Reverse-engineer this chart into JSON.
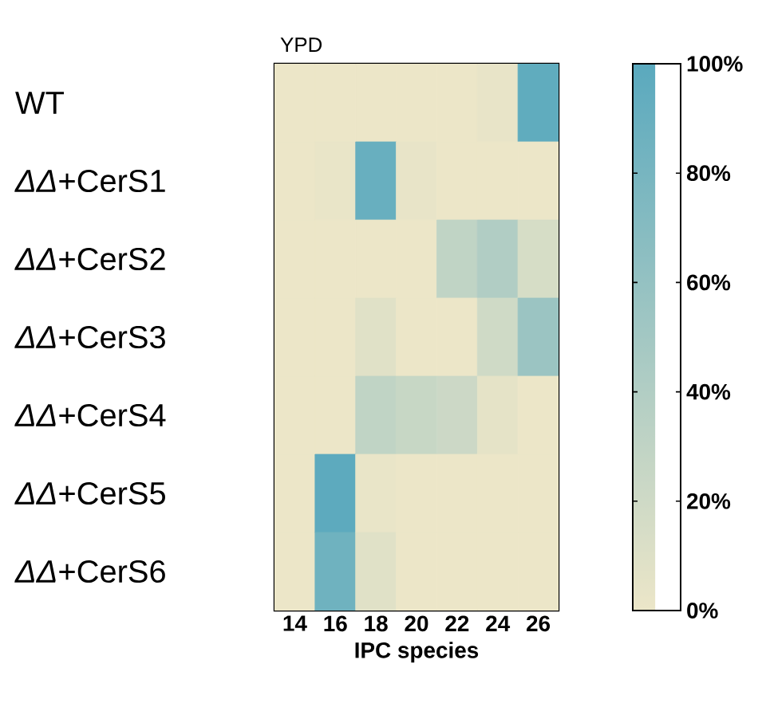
{
  "chart_data": {
    "type": "heatmap",
    "title": "YPD",
    "xlabel": "IPC species",
    "categories": [
      "14",
      "16",
      "18",
      "20",
      "22",
      "24",
      "26"
    ],
    "y_categories": [
      "WT",
      "*ΔΔ*+CerS1",
      "*ΔΔ*+CerS2",
      "*ΔΔ*+CerS3",
      "*ΔΔ*+CerS4",
      "*ΔΔ*+CerS5",
      "*ΔΔ*+CerS6"
    ],
    "cells": [
      [
        0,
        0,
        0,
        0,
        0,
        3,
        95
      ],
      [
        0,
        2,
        90,
        3,
        0,
        0,
        0
      ],
      [
        0,
        0,
        0,
        0,
        30,
        40,
        15
      ],
      [
        0,
        0,
        8,
        0,
        0,
        20,
        55
      ],
      [
        0,
        0,
        30,
        25,
        22,
        5,
        0
      ],
      [
        0,
        97,
        2,
        0,
        0,
        0,
        0
      ],
      [
        0,
        85,
        8,
        0,
        0,
        0,
        0
      ]
    ],
    "clim": [
      0,
      100
    ],
    "cticks": [
      {
        "value": 0,
        "label": "0%"
      },
      {
        "value": 20,
        "label": "20%"
      },
      {
        "value": 40,
        "label": "40%"
      },
      {
        "value": 60,
        "label": "60%"
      },
      {
        "value": 80,
        "label": "80%"
      },
      {
        "value": 100,
        "label": "100%"
      }
    ]
  }
}
